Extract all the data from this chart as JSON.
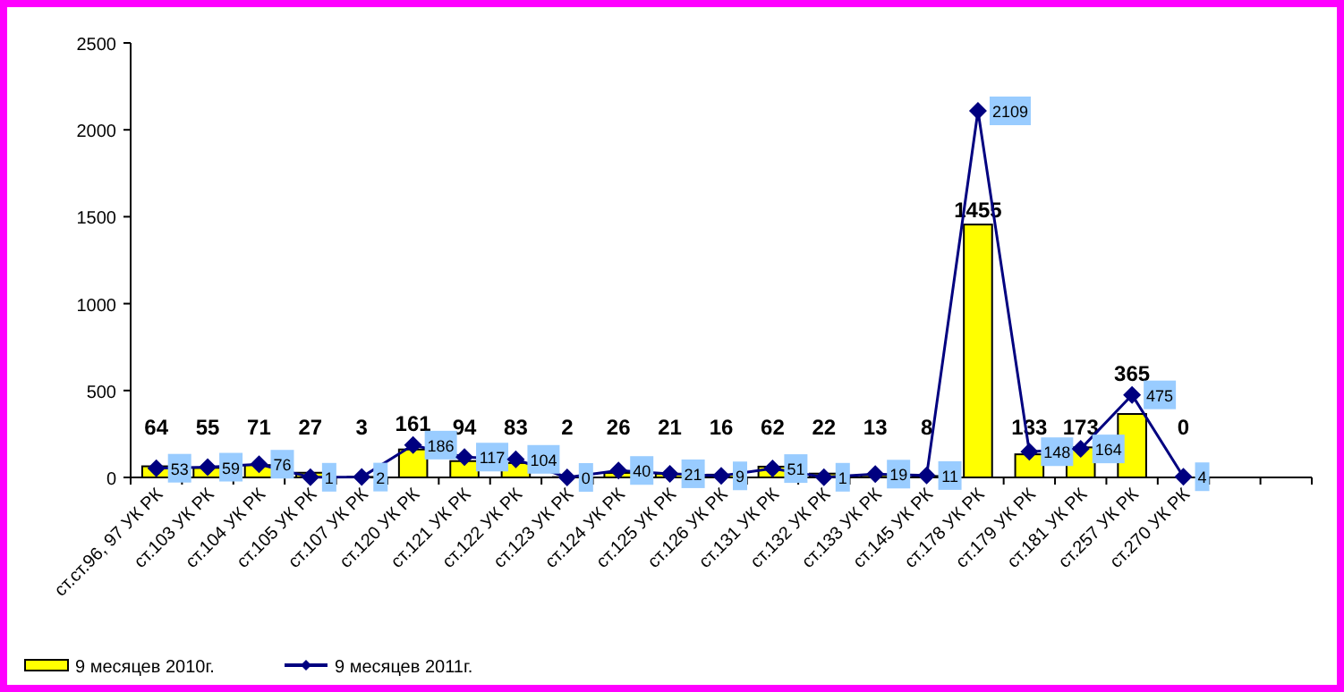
{
  "chart_data": {
    "type": "bar",
    "categories": [
      "ст.ст.96, 97 УК РК",
      "ст.103 УК РК",
      "ст.104 УК РК",
      "ст.105 УК РК",
      "ст.107 УК РК",
      "ст.120 УК РК",
      "ст.121 УК РК",
      "ст.122 УК РК",
      "ст.123 УК РК",
      "ст.124 УК РК",
      "ст.125 УК РК",
      "ст.126 УК РК",
      "ст.131 УК РК",
      "ст.132 УК РК",
      "ст.133 УК РК",
      "ст.145 УК РК",
      "ст.178 УК РК",
      "ст.179 УК РК",
      "ст.181 УК РК",
      "ст.257 УК РК",
      "ст.270 УК РК",
      null,
      null
    ],
    "series": [
      {
        "name": "9 месяцев 2010г.",
        "type": "bar",
        "color": "#ffff00",
        "values": [
          64,
          55,
          71,
          27,
          3,
          161,
          94,
          83,
          2,
          26,
          21,
          16,
          62,
          22,
          13,
          8,
          1455,
          133,
          173,
          365,
          0,
          null,
          null
        ]
      },
      {
        "name": "9 месяцев 2011г.",
        "type": "line",
        "color": "#000080",
        "values": [
          53,
          59,
          76,
          1,
          2,
          186,
          117,
          104,
          0,
          40,
          21,
          9,
          51,
          1,
          19,
          11,
          2109,
          148,
          164,
          475,
          4,
          null,
          null
        ]
      }
    ],
    "ylim": [
      0,
      2500
    ],
    "yticks": [
      0,
      500,
      1000,
      1500,
      2000,
      2500
    ],
    "grid": false,
    "legend": "bottom left",
    "marker": "diamond",
    "line_style": "solid",
    "data_labels": true
  }
}
